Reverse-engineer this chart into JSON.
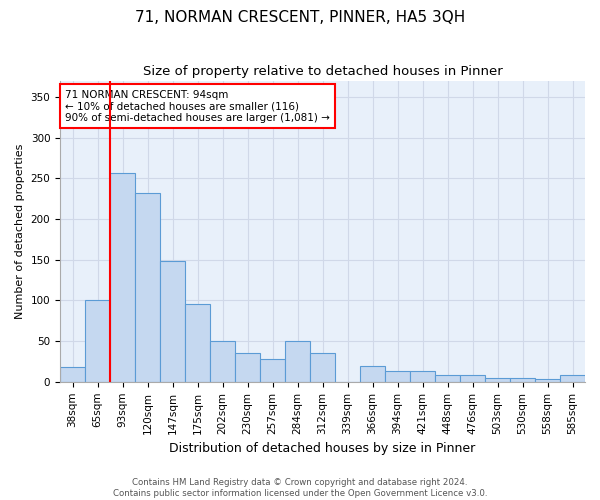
{
  "title": "71, NORMAN CRESCENT, PINNER, HA5 3QH",
  "subtitle": "Size of property relative to detached houses in Pinner",
  "xlabel": "Distribution of detached houses by size in Pinner",
  "ylabel": "Number of detached properties",
  "categories": [
    "38sqm",
    "65sqm",
    "93sqm",
    "120sqm",
    "147sqm",
    "175sqm",
    "202sqm",
    "230sqm",
    "257sqm",
    "284sqm",
    "312sqm",
    "339sqm",
    "366sqm",
    "394sqm",
    "421sqm",
    "448sqm",
    "476sqm",
    "503sqm",
    "530sqm",
    "558sqm",
    "585sqm"
  ],
  "values": [
    18,
    100,
    256,
    232,
    148,
    95,
    50,
    35,
    28,
    50,
    35,
    0,
    20,
    13,
    13,
    8,
    8,
    5,
    5,
    3,
    8
  ],
  "bar_color": "#c5d8f0",
  "bar_edge_color": "#5b9bd5",
  "annotation_text": "71 NORMAN CRESCENT: 94sqm\n← 10% of detached houses are smaller (116)\n90% of semi-detached houses are larger (1,081) →",
  "annotation_box_color": "white",
  "annotation_box_edge_color": "red",
  "vline_color": "red",
  "vline_idx": 2,
  "ylim": [
    0,
    370
  ],
  "yticks": [
    0,
    50,
    100,
    150,
    200,
    250,
    300,
    350
  ],
  "background_color": "#e8f0fa",
  "grid_color": "#d0d8e8",
  "footer_text": "Contains HM Land Registry data © Crown copyright and database right 2024.\nContains public sector information licensed under the Open Government Licence v3.0.",
  "title_fontsize": 11,
  "subtitle_fontsize": 9.5,
  "xlabel_fontsize": 9,
  "ylabel_fontsize": 8,
  "tick_fontsize": 7.5
}
